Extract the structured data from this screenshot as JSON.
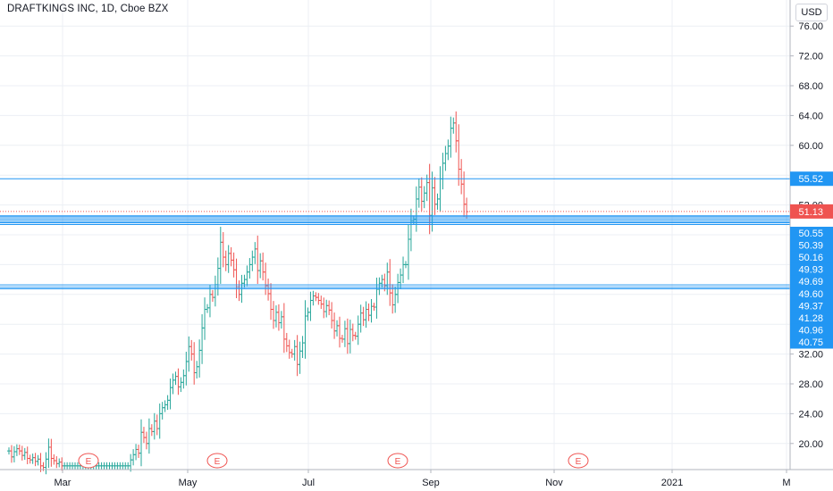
{
  "header": {
    "title": "DRAFTKINGS INC, 1D, Cboe BZX",
    "currency_button": "USD"
  },
  "colors": {
    "up": "#26a69a",
    "down": "#ef5350",
    "level": "#2196f3",
    "last_price": "#ef5350",
    "grid": "#eceff4"
  },
  "chart_data": {
    "type": "candlestick",
    "title": "DRAFTKINGS INC, 1D, Cboe BZX",
    "ylim": [
      16.5,
      79.5
    ],
    "y_ticks": [
      20,
      24,
      28,
      32,
      36,
      40,
      44,
      48,
      52,
      56,
      60,
      64,
      68,
      72,
      76
    ],
    "y_tick_labels": [
      "20.00",
      "24.00",
      "28.00",
      "32.00",
      "",
      "",
      "",
      "",
      "52.00",
      "",
      "60.00",
      "64.00",
      "68.00",
      "72.00",
      "76.00"
    ],
    "x_labels": [
      "Mar",
      "May",
      "Jul",
      "Sep",
      "Nov",
      "2021",
      "M"
    ],
    "grid": true,
    "last_price": {
      "value": 51.13,
      "label": "51.13"
    },
    "levels": [
      {
        "value": 55.52,
        "label": "55.52",
        "style": "single"
      },
      {
        "value": 50.55,
        "label": "50.55",
        "style": "band"
      },
      {
        "value": 50.39,
        "label": "50.39",
        "style": "band"
      },
      {
        "value": 50.16,
        "label": "50.16",
        "style": "band"
      },
      {
        "value": 49.93,
        "label": "49.93",
        "style": "band"
      },
      {
        "value": 49.69,
        "label": "49.69",
        "style": "band"
      },
      {
        "value": 49.6,
        "label": "49.60",
        "style": "band"
      },
      {
        "value": 49.37,
        "label": "49.37",
        "style": "band"
      },
      {
        "value": 41.28,
        "label": "41.28",
        "style": "band"
      },
      {
        "value": 40.96,
        "label": "40.96",
        "style": "band"
      },
      {
        "value": 40.75,
        "label": "40.75",
        "style": "band"
      }
    ],
    "earnings_markers": [
      {
        "label": "E",
        "date": "2020-03-06"
      },
      {
        "label": "E",
        "date": "2020-05-15"
      },
      {
        "label": "E",
        "date": "2020-08-14"
      },
      {
        "label": "E",
        "date": "2020-11-13"
      }
    ],
    "closes": [
      19.0,
      18.2,
      18.9,
      19.3,
      19.0,
      18.4,
      18.8,
      18.0,
      17.8,
      18.1,
      17.6,
      17.9,
      17.0,
      16.8,
      17.9,
      19.5,
      18.0,
      17.7,
      17.3,
      17.5,
      17.0,
      17.0,
      17.0,
      17.0,
      17.0,
      17.0,
      17.0,
      17.0,
      17.0,
      17.0,
      17.0,
      17.0,
      17.0,
      17.0,
      17.0,
      17.0,
      17.0,
      17.0,
      17.0,
      17.0,
      17.0,
      17.0,
      17.0,
      17.0,
      17.0,
      17.0,
      17.8,
      18.5,
      19.2,
      18.7,
      21.5,
      20.8,
      20.0,
      22.0,
      21.6,
      23.0,
      22.0,
      24.0,
      24.8,
      25.2,
      25.8,
      27.5,
      28.5,
      29.0,
      27.6,
      28.2,
      29.1,
      31.0,
      33.0,
      32.0,
      29.5,
      30.3,
      32.5,
      35.5,
      38.0,
      38.2,
      40.0,
      39.6,
      41.3,
      43.5,
      47.0,
      45.0,
      44.0,
      45.5,
      44.6,
      43.3,
      41.0,
      40.0,
      41.5,
      42.0,
      43.0,
      44.0,
      45.0,
      46.1,
      43.2,
      44.5,
      43.0,
      41.2,
      40.1,
      38.0,
      36.5,
      37.6,
      36.2,
      37.0,
      34.0,
      33.1,
      32.2,
      32.0,
      33.0,
      30.6,
      32.4,
      33.5,
      37.1,
      37.6,
      39.2,
      39.8,
      39.6,
      39.2,
      38.7,
      37.7,
      38.5,
      37.9,
      36.5,
      35.1,
      35.8,
      34.1,
      34.0,
      35.4,
      33.4,
      35.3,
      34.5,
      34.4,
      36.0,
      37.5,
      36.6,
      38.0,
      37.2,
      38.4,
      38.3,
      40.7,
      41.5,
      42.0,
      41.2,
      43.0,
      40.2,
      38.6,
      40.0,
      41.6,
      42.6,
      44.0,
      44.0,
      47.4,
      49.9,
      50.1,
      52.8,
      54.4,
      52.5,
      53.6,
      55.0,
      50.6,
      54.3,
      52.1,
      52.8,
      55.5,
      57.6,
      58.9,
      59.9,
      62.3,
      63.0,
      60.6,
      56.8,
      54.8,
      52.1,
      51.1
    ]
  }
}
